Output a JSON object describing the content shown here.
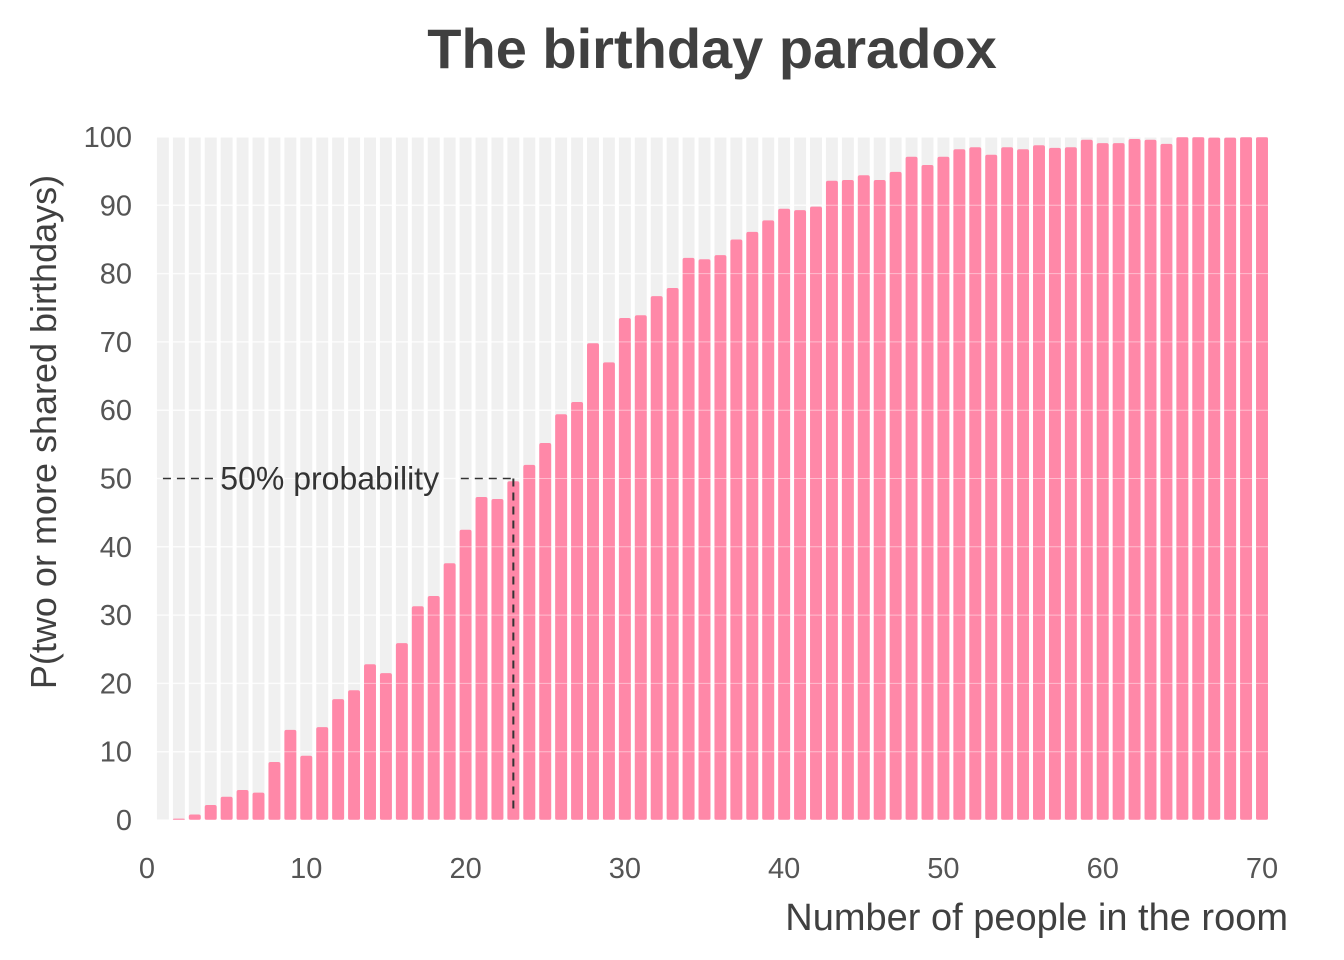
{
  "chart_data": {
    "type": "bar",
    "title": "The birthday paradox",
    "xlabel": "Number of people in the room",
    "ylabel": "P(two or more shared birthdays)",
    "xlim": [
      0,
      70
    ],
    "ylim": [
      0,
      100
    ],
    "xticks": [
      0,
      10,
      20,
      30,
      40,
      50,
      60,
      70
    ],
    "yticks": [
      0,
      10,
      20,
      30,
      40,
      50,
      60,
      70,
      80,
      90,
      100
    ],
    "grid": true,
    "bar_color": "#ff88a8",
    "x": [
      1,
      2,
      3,
      4,
      5,
      6,
      7,
      8,
      9,
      10,
      11,
      12,
      13,
      14,
      15,
      16,
      17,
      18,
      19,
      20,
      21,
      22,
      23,
      24,
      25,
      26,
      27,
      28,
      29,
      30,
      31,
      32,
      33,
      34,
      35,
      36,
      37,
      38,
      39,
      40,
      41,
      42,
      43,
      44,
      45,
      46,
      47,
      48,
      49,
      50,
      51,
      52,
      53,
      54,
      55,
      56,
      57,
      58,
      59,
      60,
      61,
      62,
      63,
      64,
      65,
      66,
      67,
      68,
      69,
      70
    ],
    "values": [
      0,
      0.2,
      0.8,
      2.2,
      3.4,
      4.4,
      4,
      8.5,
      13.2,
      9.4,
      13.6,
      17.7,
      19,
      22.8,
      21.5,
      25.9,
      31.3,
      32.8,
      37.6,
      42.5,
      47.3,
      47,
      49.6,
      52,
      55.2,
      59.4,
      61.2,
      69.8,
      67,
      73.5,
      73.9,
      76.7,
      77.9,
      82.3,
      82.1,
      82.7,
      85,
      86.1,
      87.8,
      89.5,
      89.3,
      89.8,
      93.6,
      93.7,
      94.4,
      93.7,
      94.9,
      97.1,
      95.9,
      97.1,
      98.2,
      98.5,
      97.4,
      98.5,
      98.2,
      98.8,
      98.4,
      98.5,
      99.6,
      99.1,
      99.1,
      99.7,
      99.6,
      99,
      100,
      100,
      99.9,
      99.9,
      100,
      100
    ],
    "annotation": {
      "text": "50% probability",
      "y": 50,
      "x": 23
    }
  }
}
